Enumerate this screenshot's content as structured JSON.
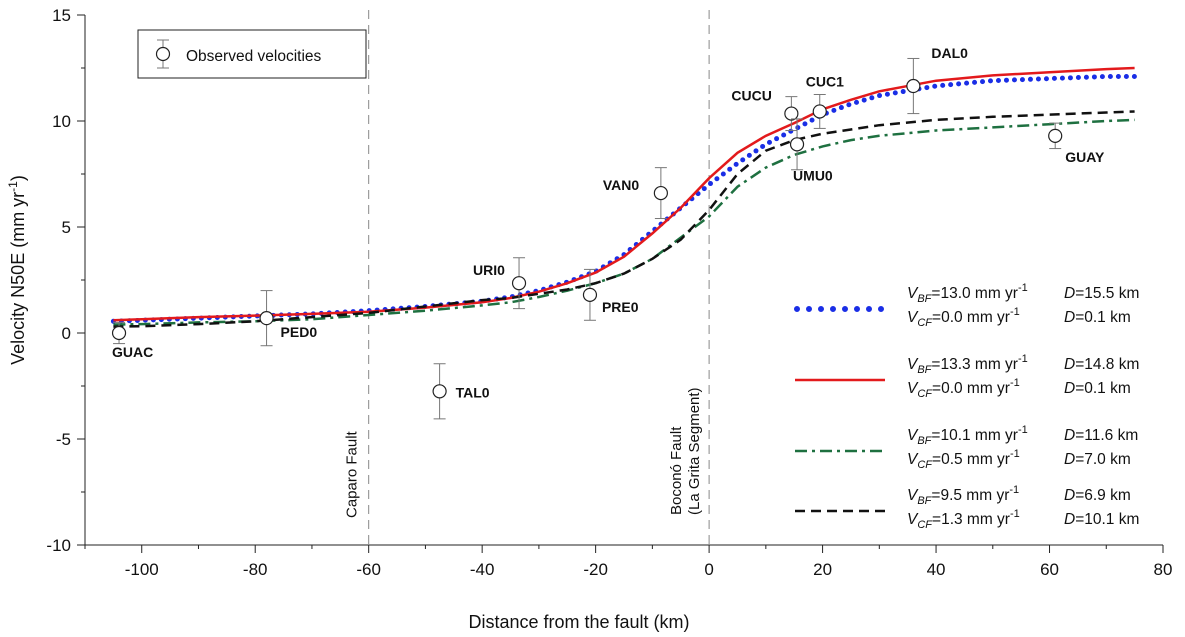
{
  "chart_data": {
    "type": "line",
    "xlabel": "Distance from the fault (km)",
    "ylabel_main": "Velocity N50E (mm yr",
    "ylabel_sup": "-1",
    "ylabel_end": ")",
    "xlim": [
      -110,
      80
    ],
    "ylim": [
      -10,
      15
    ],
    "xticks": [
      -100,
      -80,
      -60,
      -40,
      -20,
      0,
      20,
      40,
      60,
      80
    ],
    "yticks": [
      -10,
      -5,
      0,
      5,
      10,
      15
    ],
    "observed_legend": "Observed velocities",
    "observations": [
      {
        "name": "GUAC",
        "x": -104,
        "y": 0.0,
        "err": 0.5
      },
      {
        "name": "PED0",
        "x": -78,
        "y": 0.7,
        "err": 1.3
      },
      {
        "name": "TAL0",
        "x": -47.5,
        "y": -2.75,
        "err": 1.3
      },
      {
        "name": "URI0",
        "x": -33.5,
        "y": 2.35,
        "err": 1.2
      },
      {
        "name": "PRE0",
        "x": -21,
        "y": 1.8,
        "err": 1.2
      },
      {
        "name": "VAN0",
        "x": -8.5,
        "y": 6.6,
        "err": 1.2
      },
      {
        "name": "CUCU",
        "x": 14.5,
        "y": 10.35,
        "err": 0.8
      },
      {
        "name": "UMU0",
        "x": 15.5,
        "y": 8.9,
        "err": 1.2
      },
      {
        "name": "CUC1",
        "x": 19.5,
        "y": 10.45,
        "err": 0.8
      },
      {
        "name": "DAL0",
        "x": 36,
        "y": 11.65,
        "err": 1.3
      },
      {
        "name": "GUAY",
        "x": 61,
        "y": 9.3,
        "err": 0.6
      }
    ],
    "faults": [
      {
        "x": -60,
        "label": [
          "Caparo Fault"
        ]
      },
      {
        "x": 0,
        "label": [
          "Boconó Fault",
          "(La Grita Segment)"
        ]
      }
    ],
    "series": [
      {
        "vbf": "13.0",
        "d1": "15.5",
        "vcf": "0.0",
        "d2": "0.1",
        "style": "dotted",
        "color": "#1a2ee6",
        "x": [
          -105,
          -100,
          -90,
          -80,
          -70,
          -60,
          -50,
          -40,
          -35,
          -30,
          -25,
          -20,
          -15,
          -10,
          -5,
          0,
          5,
          10,
          15,
          20,
          25,
          30,
          40,
          50,
          60,
          70,
          75
        ],
        "y": [
          0.55,
          0.6,
          0.7,
          0.8,
          0.9,
          1.05,
          1.25,
          1.5,
          1.7,
          2.0,
          2.4,
          2.9,
          3.7,
          4.8,
          5.9,
          7.0,
          8.0,
          8.9,
          9.6,
          10.3,
          10.8,
          11.2,
          11.65,
          11.9,
          12.0,
          12.1,
          12.1
        ]
      },
      {
        "vbf": "13.3",
        "d1": "14.8",
        "vcf": "0.0",
        "d2": "0.1",
        "style": "solid",
        "color": "#e31a1c",
        "x": [
          -105,
          -100,
          -90,
          -80,
          -70,
          -60,
          -50,
          -40,
          -35,
          -30,
          -25,
          -20,
          -15,
          -10,
          -5,
          0,
          5,
          10,
          15,
          20,
          25,
          30,
          40,
          50,
          60,
          70,
          75
        ],
        "y": [
          0.6,
          0.65,
          0.75,
          0.82,
          0.9,
          1.0,
          1.2,
          1.45,
          1.65,
          1.95,
          2.35,
          2.85,
          3.6,
          4.7,
          5.9,
          7.3,
          8.5,
          9.3,
          9.9,
          10.55,
          11.0,
          11.4,
          11.9,
          12.15,
          12.3,
          12.45,
          12.5
        ]
      },
      {
        "vbf": "10.1",
        "d1": "11.6",
        "vcf": "0.5",
        "d2": "7.0",
        "style": "dashdot",
        "color": "#1e7040",
        "x": [
          -105,
          -100,
          -90,
          -80,
          -70,
          -60,
          -50,
          -40,
          -35,
          -30,
          -25,
          -20,
          -15,
          -10,
          -5,
          0,
          5,
          10,
          15,
          20,
          25,
          30,
          40,
          50,
          60,
          70,
          75
        ],
        "y": [
          0.4,
          0.42,
          0.5,
          0.55,
          0.65,
          0.85,
          1.05,
          1.3,
          1.45,
          1.7,
          2.0,
          2.35,
          2.8,
          3.5,
          4.5,
          5.5,
          6.9,
          7.8,
          8.4,
          8.8,
          9.1,
          9.3,
          9.55,
          9.7,
          9.85,
          10.0,
          10.05
        ]
      },
      {
        "vbf": "9.5",
        "d1": "6.9",
        "vcf": "1.3",
        "d2": "10.1",
        "style": "dashed",
        "color": "#111111",
        "x": [
          -105,
          -100,
          -90,
          -80,
          -70,
          -60,
          -50,
          -40,
          -35,
          -30,
          -25,
          -20,
          -15,
          -10,
          -5,
          0,
          5,
          10,
          15,
          20,
          25,
          30,
          40,
          50,
          60,
          70,
          75
        ],
        "y": [
          0.3,
          0.32,
          0.42,
          0.55,
          0.75,
          0.95,
          1.25,
          1.55,
          1.65,
          1.85,
          2.05,
          2.35,
          2.8,
          3.5,
          4.4,
          5.8,
          7.5,
          8.6,
          9.1,
          9.4,
          9.6,
          9.8,
          10.05,
          10.2,
          10.3,
          10.4,
          10.45
        ]
      }
    ]
  },
  "legend": {
    "unit": "mm yr",
    "unit_sup": "-1",
    "km": "km",
    "sub_bf": "BF",
    "sub_cf": "CF",
    "v": "V",
    "d": "D"
  }
}
